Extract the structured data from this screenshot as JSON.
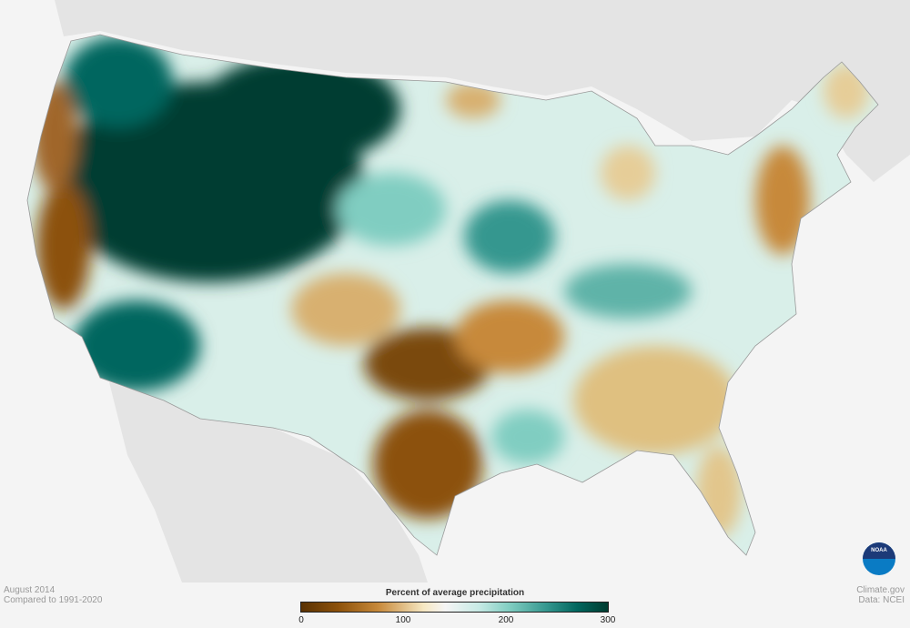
{
  "caption": {
    "period": "August 2014",
    "baseline": "Compared to 1991-2020"
  },
  "credits": {
    "site": "Climate.gov",
    "data": "Data: NCEI"
  },
  "legend": {
    "title": "Percent of average precipitation",
    "ticks": [
      "0",
      "100",
      "200",
      "300"
    ],
    "range": [
      0,
      300
    ],
    "colors": [
      "#5a3203",
      "#8c510a",
      "#c7893a",
      "#f6e8c3",
      "#f5f5f5",
      "#c7eae5",
      "#80cdc1",
      "#35978f",
      "#01665e",
      "#003c30"
    ]
  },
  "logo": {
    "text": "NOAA"
  }
}
